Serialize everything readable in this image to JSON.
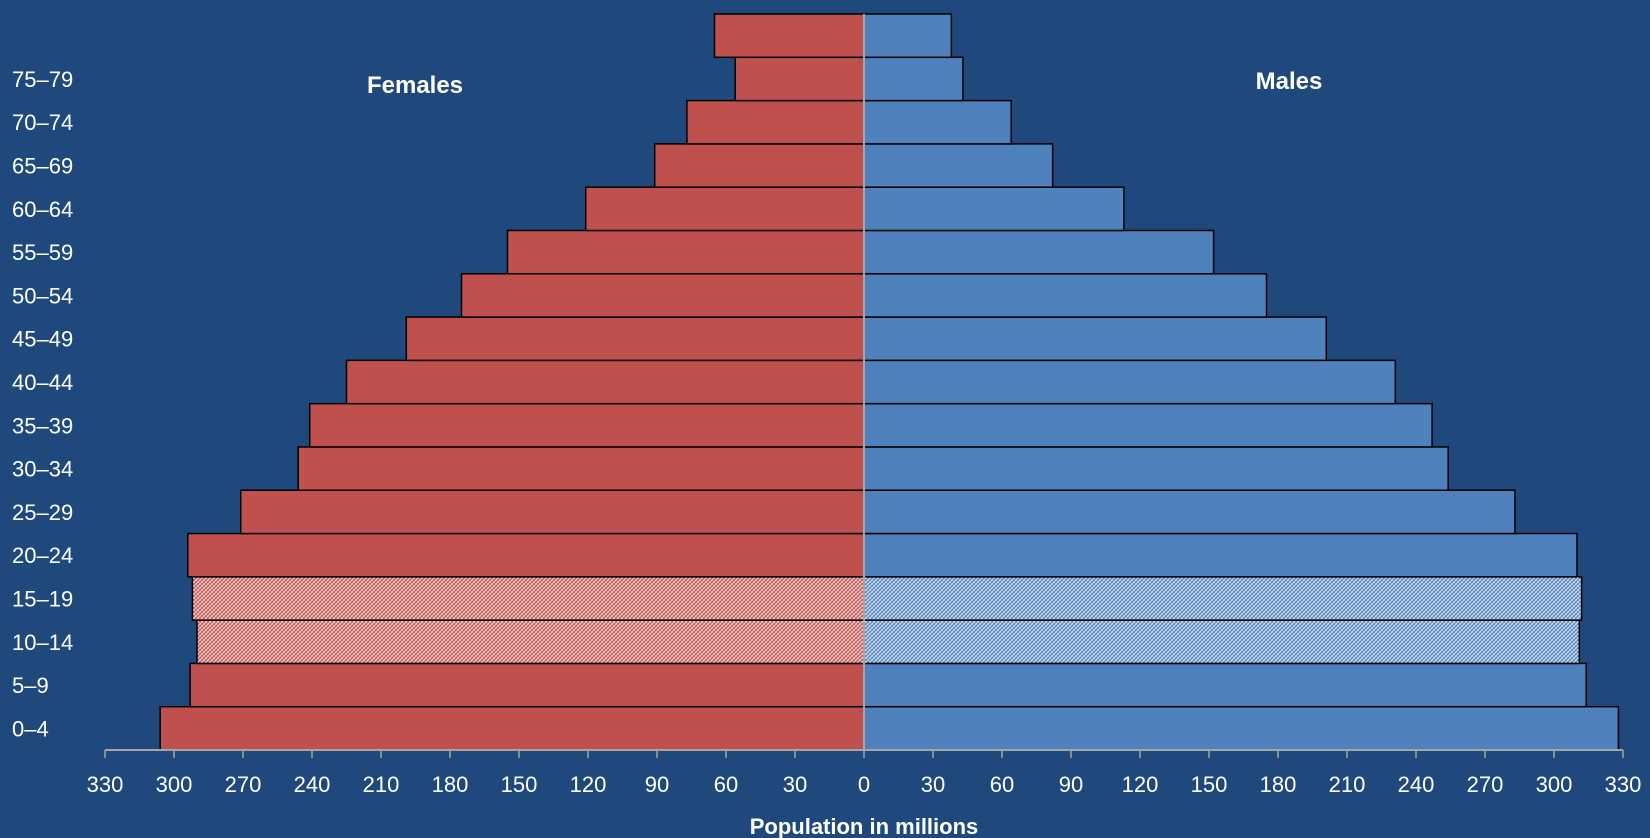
{
  "chart_data": {
    "type": "bar",
    "orientation": "horizontal-population-pyramid",
    "title": "",
    "xlabel": "Population in millions",
    "ylabel": "",
    "xlim": [
      -330,
      330
    ],
    "x_ticks": [
      330,
      300,
      270,
      240,
      210,
      180,
      150,
      120,
      90,
      60,
      30,
      0,
      30,
      60,
      90,
      120,
      150,
      180,
      210,
      240,
      270,
      300,
      330
    ],
    "categories": [
      "0–4",
      "5–9",
      "10–14",
      "15–19",
      "20–24",
      "25–29",
      "30–34",
      "35–39",
      "40–44",
      "45–49",
      "50–54",
      "55–59",
      "60–64",
      "65–69",
      "70–74",
      "75–79",
      ""
    ],
    "series": [
      {
        "name": "Females",
        "side": "left",
        "color": "#c0504d",
        "values": [
          306,
          293,
          290,
          292,
          294,
          271,
          246,
          241,
          225,
          199,
          175,
          155,
          121,
          91,
          77,
          56,
          65
        ],
        "hatched_categories": [
          "10–14",
          "15–19"
        ]
      },
      {
        "name": "Males",
        "side": "right",
        "color": "#4f81bd",
        "values": [
          328,
          314,
          311,
          312,
          310,
          283,
          254,
          247,
          231,
          201,
          175,
          152,
          113,
          82,
          64,
          43,
          38
        ],
        "hatched_categories": [
          "10–14",
          "15–19"
        ]
      }
    ],
    "grid": false,
    "legend": "inline labels"
  }
}
